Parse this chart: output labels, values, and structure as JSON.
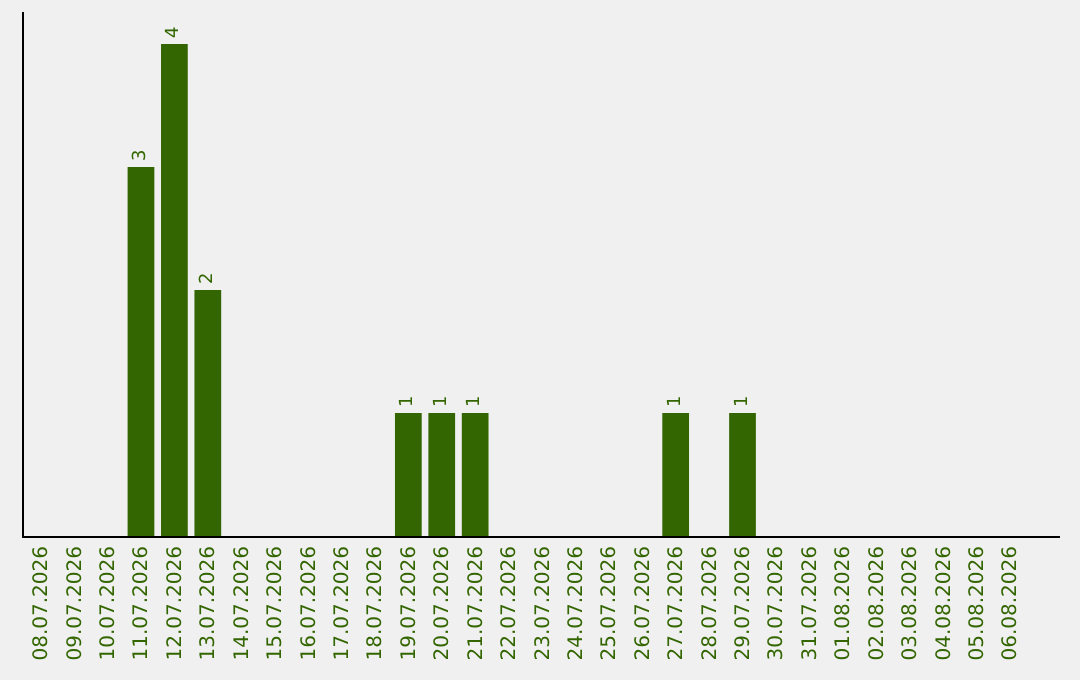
{
  "chart_data": {
    "type": "bar",
    "categories": [
      "08.07.2026",
      "09.07.2026",
      "10.07.2026",
      "11.07.2026",
      "12.07.2026",
      "13.07.2026",
      "14.07.2026",
      "15.07.2026",
      "16.07.2026",
      "17.07.2026",
      "18.07.2026",
      "19.07.2026",
      "20.07.2026",
      "21.07.2026",
      "22.07.2026",
      "23.07.2026",
      "24.07.2026",
      "25.07.2026",
      "26.07.2026",
      "27.07.2026",
      "28.07.2026",
      "29.07.2026",
      "30.07.2026",
      "31.07.2026",
      "01.08.2026",
      "02.08.2026",
      "03.08.2026",
      "04.08.2026",
      "05.08.2026",
      "06.08.2026"
    ],
    "values": [
      0,
      0,
      0,
      3,
      4,
      2,
      0,
      0,
      0,
      0,
      0,
      1,
      1,
      1,
      0,
      0,
      0,
      0,
      0,
      1,
      0,
      1,
      0,
      0,
      0,
      0,
      0,
      0,
      0,
      0
    ],
    "value_labels": [
      null,
      null,
      null,
      "3",
      "4",
      "2",
      null,
      null,
      null,
      null,
      null,
      "1",
      "1",
      "1",
      null,
      null,
      null,
      null,
      null,
      "1",
      null,
      "1",
      null,
      null,
      null,
      null,
      null,
      null,
      null,
      null
    ],
    "color": "#336600",
    "tick_labels": "x",
    "grid": false,
    "legend": false
  }
}
